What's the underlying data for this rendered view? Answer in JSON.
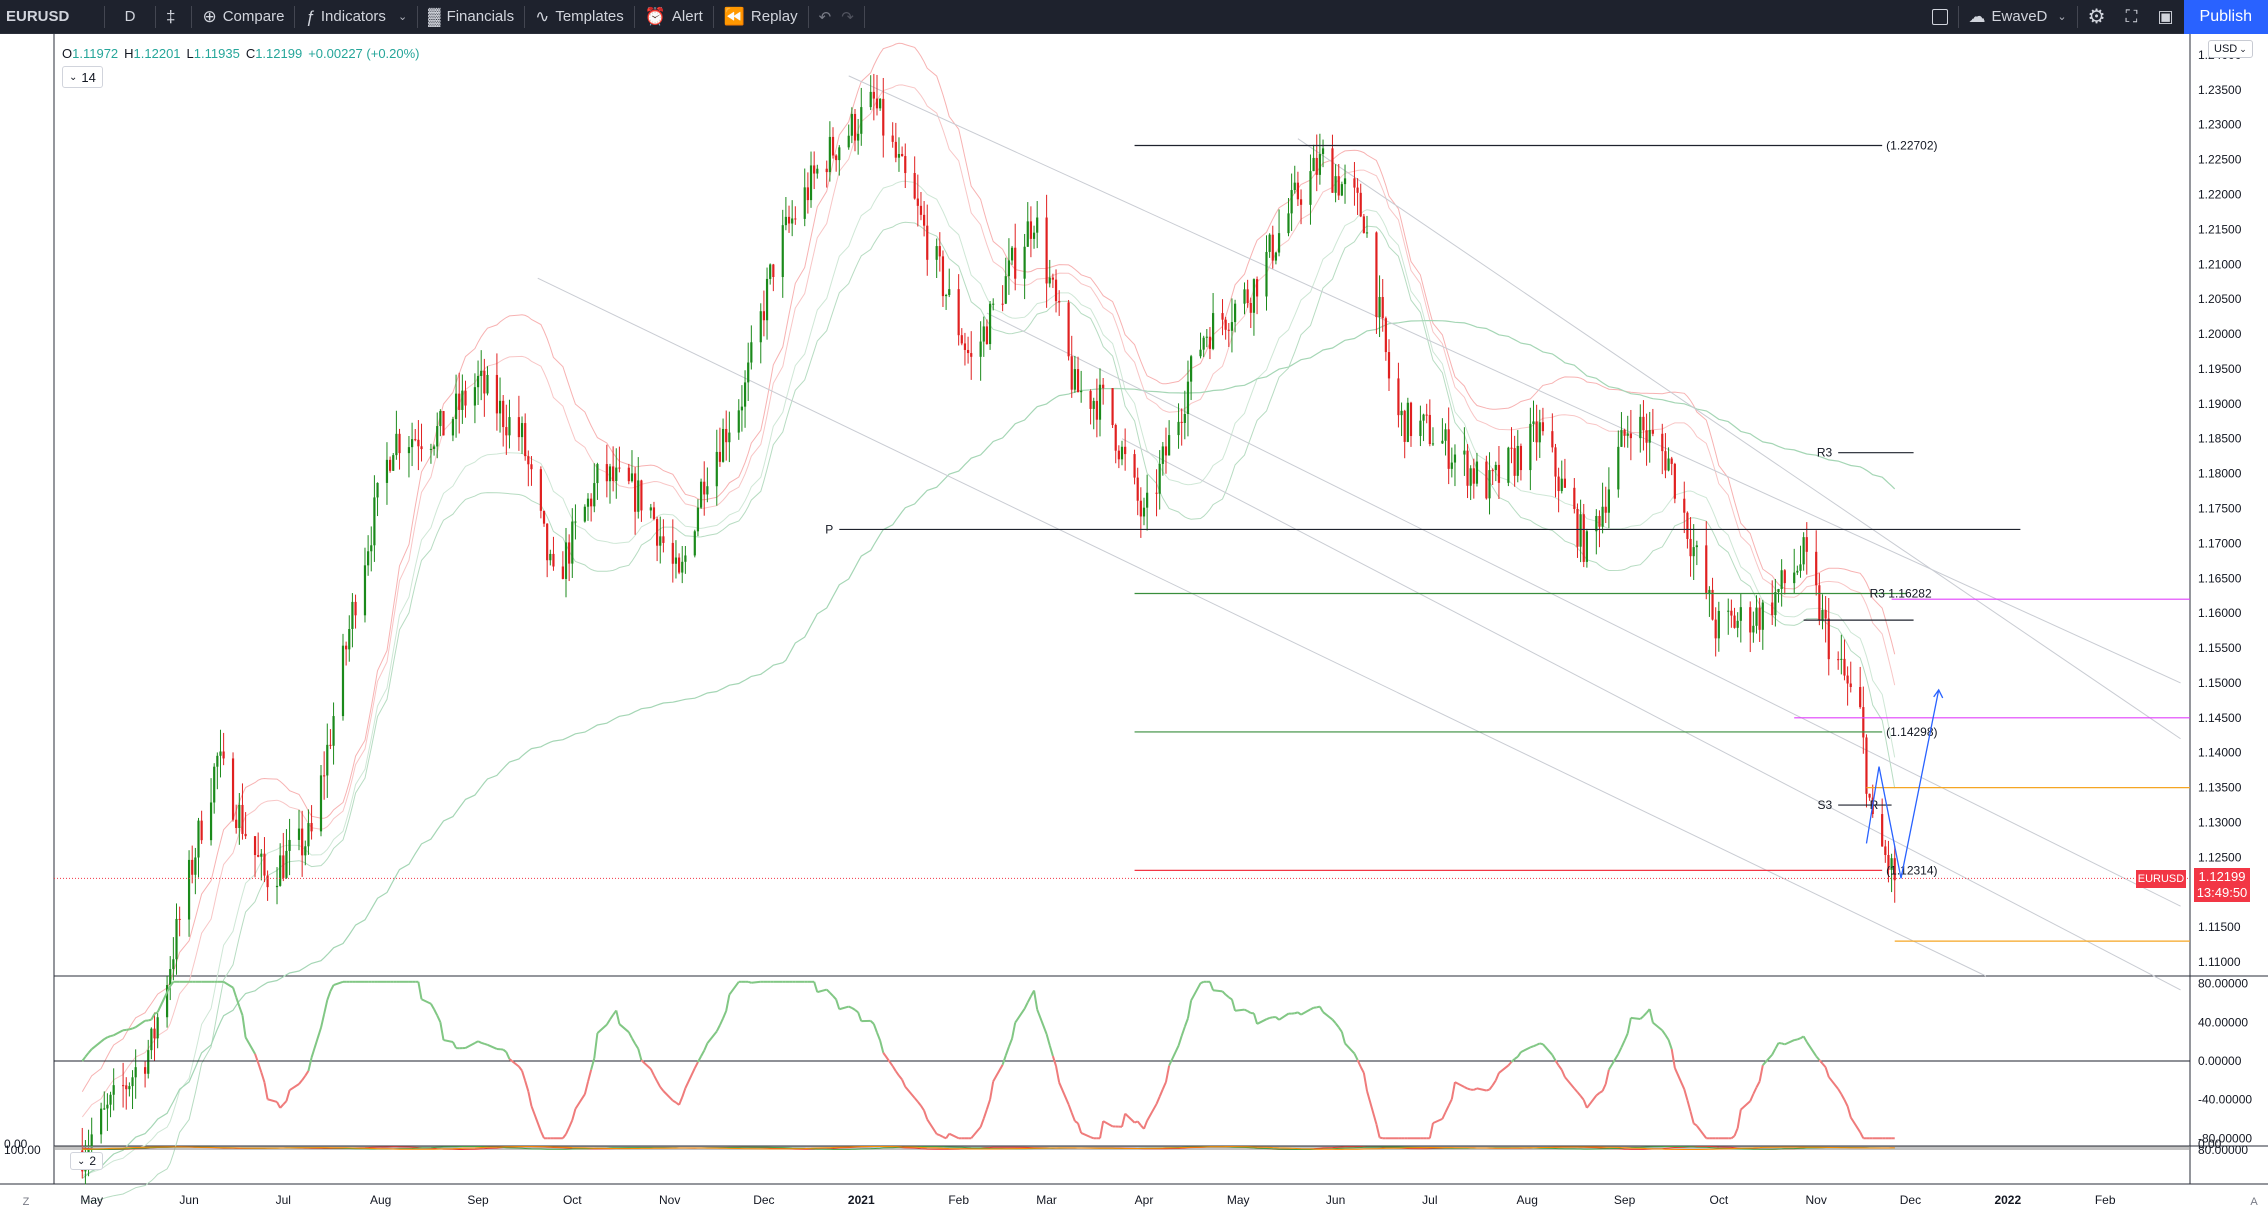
{
  "toolbar": {
    "symbol": "EURUSD",
    "interval": "D",
    "compare_label": "Compare",
    "indicators_label": "Indicators",
    "financials_label": "Financials",
    "templates_label": "Templates",
    "alert_label": "Alert",
    "replay_label": "Replay",
    "layout_name": "EwaveD",
    "publish_label": "Publish",
    "icons": [
      "candles-icon",
      "compare-icon",
      "indicators-icon",
      "financials-icon",
      "templates-icon",
      "alert-icon",
      "replay-icon",
      "undo-icon",
      "redo-icon",
      "layout-icon",
      "cloud-icon",
      "settings-icon",
      "fullscreen-icon",
      "camera-icon"
    ]
  },
  "legend": {
    "o_label": "O",
    "o_value": "1.11972",
    "h_label": "H",
    "h_value": "1.12201",
    "l_label": "L",
    "l_value": "1.11935",
    "c_label": "C",
    "c_value": "1.12199",
    "change": "+0.00227 (+0.20%)"
  },
  "indicator_badge_1": "14",
  "indicator_badge_2": "2",
  "currency": "USD",
  "last_price": {
    "symbol": "EURUSD",
    "price": "1.12199",
    "countdown": "13:49:50"
  },
  "colors": {
    "up": "#26a69a",
    "down": "#f23645",
    "bull_candle": "#1b8a1b",
    "bear_candle": "#e02020",
    "magenta_line": "#e040fb",
    "orange_line": "#f5a623",
    "blue_line": "#2962ff"
  },
  "chart_data": {
    "type": "candlestick",
    "symbol": "EURUSD",
    "interval": "D",
    "price_axis": {
      "ticks": [
        "1.24000",
        "1.23500",
        "1.23000",
        "1.22500",
        "1.22000",
        "1.21500",
        "1.21000",
        "1.20500",
        "1.20000",
        "1.19500",
        "1.19000",
        "1.18500",
        "1.18000",
        "1.17500",
        "1.17000",
        "1.16500",
        "1.16000",
        "1.15500",
        "1.15000",
        "1.14500",
        "1.14000",
        "1.13500",
        "1.13000",
        "1.12500",
        "1.12000",
        "1.11500",
        "1.11000"
      ],
      "range": [
        1.108,
        1.243
      ]
    },
    "time_axis": {
      "ticks": [
        "May",
        "Jun",
        "Jul",
        "Aug",
        "Sep",
        "Oct",
        "Nov",
        "Dec",
        "2021",
        "Feb",
        "Mar",
        "Apr",
        "May",
        "Jun",
        "Jul",
        "Aug",
        "Sep",
        "Oct",
        "Nov",
        "Dec",
        "2022",
        "Feb"
      ]
    },
    "close_path": [
      {
        "t": "2020-04-28",
        "c": 1.083
      },
      {
        "t": "2020-05-20",
        "c": 1.098
      },
      {
        "t": "2020-06-05",
        "c": 1.13
      },
      {
        "t": "2020-06-10",
        "c": 1.139
      },
      {
        "t": "2020-06-25",
        "c": 1.122
      },
      {
        "t": "2020-07-10",
        "c": 1.128
      },
      {
        "t": "2020-07-25",
        "c": 1.165
      },
      {
        "t": "2020-08-05",
        "c": 1.185
      },
      {
        "t": "2020-08-20",
        "c": 1.186
      },
      {
        "t": "2020-09-01",
        "c": 1.193
      },
      {
        "t": "2020-09-15",
        "c": 1.185
      },
      {
        "t": "2020-09-25",
        "c": 1.164
      },
      {
        "t": "2020-10-10",
        "c": 1.18
      },
      {
        "t": "2020-10-25",
        "c": 1.176
      },
      {
        "t": "2020-11-04",
        "c": 1.164
      },
      {
        "t": "2020-11-12",
        "c": 1.18
      },
      {
        "t": "2020-11-25",
        "c": 1.192
      },
      {
        "t": "2020-12-05",
        "c": 1.212
      },
      {
        "t": "2020-12-20",
        "c": 1.225
      },
      {
        "t": "2021-01-05",
        "c": 1.233
      },
      {
        "t": "2021-01-20",
        "c": 1.216
      },
      {
        "t": "2021-02-05",
        "c": 1.196
      },
      {
        "t": "2021-02-25",
        "c": 1.217
      },
      {
        "t": "2021-03-10",
        "c": 1.192
      },
      {
        "t": "2021-03-20",
        "c": 1.19
      },
      {
        "t": "2021-04-01",
        "c": 1.173
      },
      {
        "t": "2021-04-20",
        "c": 1.2
      },
      {
        "t": "2021-05-05",
        "c": 1.206
      },
      {
        "t": "2021-05-20",
        "c": 1.22
      },
      {
        "t": "2021-05-28",
        "c": 1.225
      },
      {
        "t": "2021-06-10",
        "c": 1.217
      },
      {
        "t": "2021-06-20",
        "c": 1.188
      },
      {
        "t": "2021-07-01",
        "c": 1.186
      },
      {
        "t": "2021-07-20",
        "c": 1.178
      },
      {
        "t": "2021-08-05",
        "c": 1.186
      },
      {
        "t": "2021-08-20",
        "c": 1.169
      },
      {
        "t": "2021-09-03",
        "c": 1.188
      },
      {
        "t": "2021-09-15",
        "c": 1.182
      },
      {
        "t": "2021-09-30",
        "c": 1.158
      },
      {
        "t": "2021-10-15",
        "c": 1.16
      },
      {
        "t": "2021-10-28",
        "c": 1.168
      },
      {
        "t": "2021-11-05",
        "c": 1.156
      },
      {
        "t": "2021-11-15",
        "c": 1.145
      },
      {
        "t": "2021-11-19",
        "c": 1.129
      },
      {
        "t": "2021-11-23",
        "c": 1.125
      },
      {
        "t": "2021-11-26",
        "c": 1.122
      }
    ],
    "horizontal_levels": [
      {
        "label": "(1.22702)",
        "price": 1.22702
      },
      {
        "label": "R3",
        "price": 1.183
      },
      {
        "label": "P",
        "price": 1.172
      },
      {
        "label": "R3 1.16282",
        "price": 1.16282
      },
      {
        "label": "(1.14298)",
        "price": 1.14298
      },
      {
        "label": "S3",
        "price": 1.1325
      },
      {
        "label": "R",
        "price": 1.1325
      },
      {
        "label": "(1.12314)",
        "price": 1.12314
      }
    ],
    "oscillator_1": {
      "ticks": [
        "80.00000",
        "40.00000",
        "0.00000",
        "-40.00000",
        "-80.00000"
      ],
      "range": [
        -88,
        88
      ],
      "zero_line": 0
    },
    "oscillator_2": {
      "ticks": [
        "100.00",
        "0.00"
      ],
      "badge": "2"
    }
  },
  "corner_buttons": {
    "left": "Z",
    "right": "A"
  }
}
